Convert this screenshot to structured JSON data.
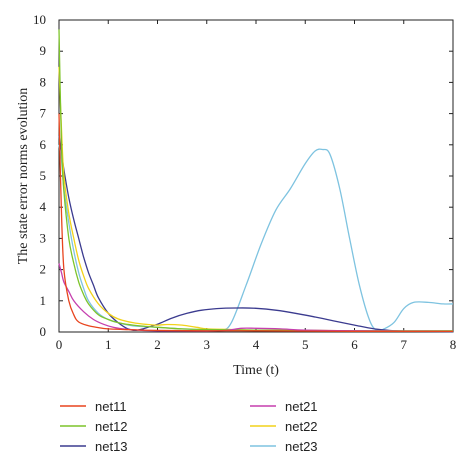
{
  "chart_data": {
    "type": "line",
    "xlabel": "Time (t)",
    "ylabel": "The state error norms evolution",
    "xlim": [
      0,
      8
    ],
    "ylim": [
      0,
      10
    ],
    "xticks": [
      "0",
      "1",
      "2",
      "3",
      "4",
      "5",
      "6",
      "7",
      "8"
    ],
    "yticks": [
      "0",
      "1",
      "2",
      "3",
      "4",
      "5",
      "6",
      "7",
      "8",
      "9",
      "10"
    ],
    "grid": false,
    "legend_position": "bottom",
    "series": [
      {
        "name": "net11",
        "color": "#e8441e",
        "points": [
          [
            0,
            7.0
          ],
          [
            0.05,
            3.8
          ],
          [
            0.1,
            2.0
          ],
          [
            0.2,
            1.0
          ],
          [
            0.3,
            0.55
          ],
          [
            0.4,
            0.32
          ],
          [
            0.6,
            0.2
          ],
          [
            0.8,
            0.14
          ],
          [
            1.0,
            0.1
          ],
          [
            1.5,
            0.07
          ],
          [
            2,
            0.05
          ],
          [
            3,
            0.04
          ],
          [
            4,
            0.04
          ],
          [
            5,
            0.03
          ],
          [
            6,
            0.02
          ],
          [
            7,
            0.02
          ],
          [
            8,
            0.02
          ]
        ]
      },
      {
        "name": "net12",
        "color": "#7dc42a",
        "points": [
          [
            0,
            9.7
          ],
          [
            0.05,
            6.0
          ],
          [
            0.1,
            4.5
          ],
          [
            0.2,
            3.0
          ],
          [
            0.3,
            2.2
          ],
          [
            0.4,
            1.6
          ],
          [
            0.5,
            1.2
          ],
          [
            0.6,
            0.9
          ],
          [
            0.8,
            0.55
          ],
          [
            1.0,
            0.4
          ],
          [
            1.2,
            0.3
          ],
          [
            1.5,
            0.22
          ],
          [
            2,
            0.15
          ],
          [
            2.5,
            0.1
          ],
          [
            3,
            0.08
          ],
          [
            4,
            0.06
          ],
          [
            5,
            0.05
          ],
          [
            6,
            0.04
          ],
          [
            7,
            0.04
          ],
          [
            8,
            0.04
          ]
        ]
      },
      {
        "name": "net13",
        "color": "#3b3b8f",
        "points": [
          [
            0,
            6.3
          ],
          [
            0.05,
            5.8
          ],
          [
            0.1,
            5.2
          ],
          [
            0.2,
            4.3
          ],
          [
            0.3,
            3.6
          ],
          [
            0.4,
            3.0
          ],
          [
            0.5,
            2.4
          ],
          [
            0.6,
            1.9
          ],
          [
            0.7,
            1.5
          ],
          [
            0.8,
            1.1
          ],
          [
            1.0,
            0.6
          ],
          [
            1.2,
            0.3
          ],
          [
            1.4,
            0.1
          ],
          [
            1.55,
            0.05
          ],
          [
            1.7,
            0.1
          ],
          [
            2.0,
            0.25
          ],
          [
            2.3,
            0.45
          ],
          [
            2.6,
            0.6
          ],
          [
            2.9,
            0.7
          ],
          [
            3.2,
            0.75
          ],
          [
            3.6,
            0.77
          ],
          [
            4.0,
            0.76
          ],
          [
            4.4,
            0.7
          ],
          [
            4.8,
            0.6
          ],
          [
            5.2,
            0.48
          ],
          [
            5.6,
            0.35
          ],
          [
            6.0,
            0.22
          ],
          [
            6.4,
            0.1
          ],
          [
            6.8,
            0.04
          ],
          [
            7.2,
            0.02
          ],
          [
            8,
            0.01
          ]
        ]
      },
      {
        "name": "net21",
        "color": "#c53fae",
        "points": [
          [
            0,
            2.2
          ],
          [
            0.05,
            1.9
          ],
          [
            0.1,
            1.6
          ],
          [
            0.2,
            1.3
          ],
          [
            0.3,
            1.0
          ],
          [
            0.5,
            0.65
          ],
          [
            0.7,
            0.4
          ],
          [
            0.9,
            0.25
          ],
          [
            1.1,
            0.15
          ],
          [
            1.3,
            0.1
          ],
          [
            1.6,
            0.06
          ],
          [
            2.0,
            0.04
          ],
          [
            3.0,
            0.03
          ],
          [
            3.4,
            0.05
          ],
          [
            3.7,
            0.12
          ],
          [
            4.0,
            0.12
          ],
          [
            4.5,
            0.1
          ],
          [
            5.0,
            0.06
          ],
          [
            6.0,
            0.04
          ],
          [
            7.0,
            0.03
          ],
          [
            8,
            0.02
          ]
        ]
      },
      {
        "name": "net22",
        "color": "#f2d21a",
        "points": [
          [
            0,
            8.5
          ],
          [
            0.05,
            6.5
          ],
          [
            0.1,
            5.0
          ],
          [
            0.2,
            3.8
          ],
          [
            0.3,
            3.0
          ],
          [
            0.4,
            2.3
          ],
          [
            0.5,
            1.8
          ],
          [
            0.6,
            1.4
          ],
          [
            0.8,
            0.9
          ],
          [
            1.0,
            0.6
          ],
          [
            1.2,
            0.42
          ],
          [
            1.5,
            0.3
          ],
          [
            1.8,
            0.24
          ],
          [
            2.0,
            0.22
          ],
          [
            2.2,
            0.24
          ],
          [
            2.5,
            0.22
          ],
          [
            2.8,
            0.15
          ],
          [
            3.0,
            0.1
          ],
          [
            3.5,
            0.08
          ],
          [
            4,
            0.06
          ],
          [
            5,
            0.05
          ],
          [
            6,
            0.04
          ],
          [
            7,
            0.03
          ],
          [
            8,
            0.03
          ]
        ]
      },
      {
        "name": "net23",
        "color": "#7ec3e0",
        "points": [
          [
            0,
            6.0
          ],
          [
            0.05,
            5.5
          ],
          [
            0.1,
            4.6
          ],
          [
            0.2,
            3.5
          ],
          [
            0.3,
            2.6
          ],
          [
            0.4,
            1.9
          ],
          [
            0.5,
            1.4
          ],
          [
            0.6,
            1.0
          ],
          [
            0.8,
            0.6
          ],
          [
            1.0,
            0.4
          ],
          [
            1.2,
            0.3
          ],
          [
            1.5,
            0.2
          ],
          [
            2.0,
            0.15
          ],
          [
            2.5,
            0.1
          ],
          [
            3.0,
            0.06
          ],
          [
            3.3,
            0.05
          ],
          [
            3.5,
            0.3
          ],
          [
            3.8,
            1.5
          ],
          [
            4.1,
            2.8
          ],
          [
            4.4,
            3.9
          ],
          [
            4.7,
            4.6
          ],
          [
            5.0,
            5.4
          ],
          [
            5.2,
            5.8
          ],
          [
            5.35,
            5.85
          ],
          [
            5.5,
            5.7
          ],
          [
            5.7,
            4.6
          ],
          [
            5.9,
            3.0
          ],
          [
            6.1,
            1.5
          ],
          [
            6.3,
            0.4
          ],
          [
            6.45,
            0.05
          ],
          [
            6.6,
            0.1
          ],
          [
            6.8,
            0.3
          ],
          [
            7.0,
            0.75
          ],
          [
            7.2,
            0.95
          ],
          [
            7.5,
            0.95
          ],
          [
            7.8,
            0.9
          ],
          [
            8,
            0.9
          ]
        ]
      }
    ]
  }
}
